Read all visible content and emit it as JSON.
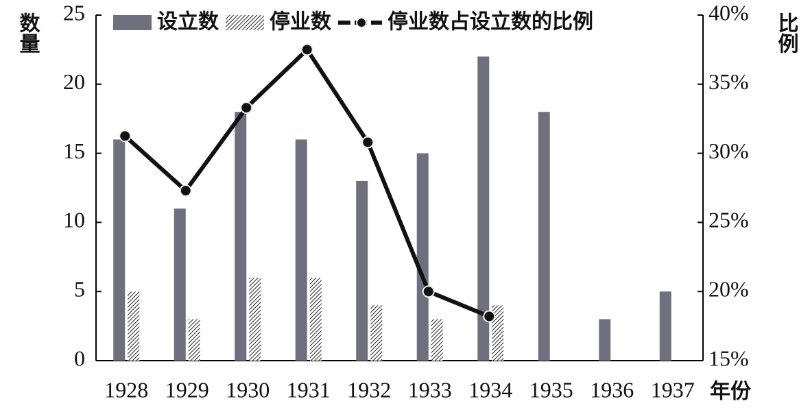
{
  "chart_data": {
    "type": "bar",
    "y_label": "数量",
    "y2_label": "比例",
    "x_label": "年份",
    "categories": [
      "1928",
      "1929",
      "1930",
      "1931",
      "1932",
      "1933",
      "1934",
      "1935",
      "1936",
      "1937"
    ],
    "series": [
      {
        "name": "设立数",
        "type": "bar",
        "color": "#6e717d",
        "values": [
          16,
          11,
          18,
          16,
          13,
          15,
          22,
          18,
          3,
          5
        ]
      },
      {
        "name": "停业数",
        "type": "bar",
        "hatch": true,
        "color": "#222222",
        "values": [
          5,
          3,
          6,
          6,
          4,
          3,
          4,
          null,
          null,
          null
        ]
      },
      {
        "name": "停业数占设立数的比例",
        "type": "line",
        "axis": "y2",
        "color": "#111111",
        "values": [
          31.25,
          27.3,
          33.3,
          37.5,
          30.8,
          20,
          18.2,
          null,
          null,
          null
        ]
      }
    ],
    "ylim": [
      0,
      25
    ],
    "yticks": [
      0,
      5,
      10,
      15,
      20,
      25
    ],
    "y2lim": [
      15,
      40
    ],
    "y2ticks": [
      {
        "value": 15,
        "label": "15%"
      },
      {
        "value": 20,
        "label": "20%"
      },
      {
        "value": 25,
        "label": "25%"
      },
      {
        "value": 30,
        "label": "30%"
      },
      {
        "value": 35,
        "label": "35%"
      },
      {
        "value": 40,
        "label": "40%"
      }
    ],
    "legend": "top",
    "grid": false
  }
}
